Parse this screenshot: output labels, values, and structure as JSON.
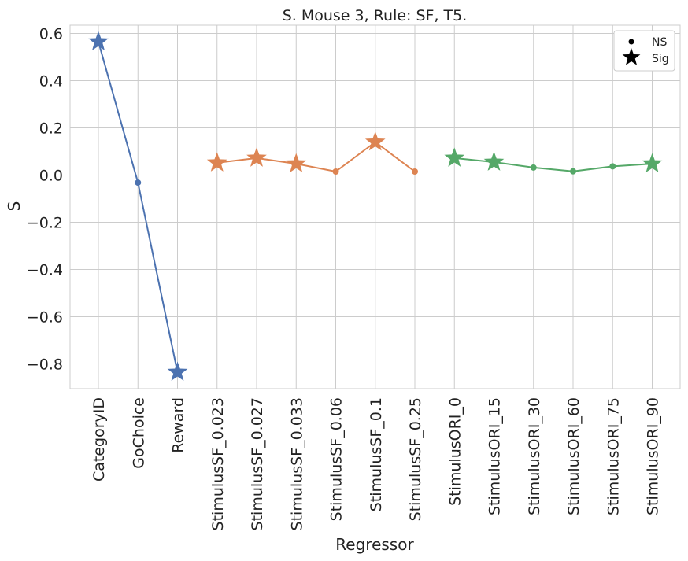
{
  "chart_data": {
    "type": "line",
    "title": "S. Mouse 3, Rule: SF, T5.",
    "xlabel": "Regressor",
    "ylabel": "S",
    "categories": [
      "CategoryID",
      "GoChoice",
      "Reward",
      "StimulusSF_0.023",
      "StimulusSF_0.027",
      "StimulusSF_0.033",
      "StimulusSF_0.06",
      "StimulusSF_0.1",
      "StimulusSF_0.25",
      "StimulusORI_0",
      "StimulusORI_15",
      "StimulusORI_30",
      "StimulusORI_60",
      "StimulusORI_75",
      "StimulusORI_90"
    ],
    "ylim": [
      -0.905,
      0.635
    ],
    "yticks": [
      0.6,
      0.4,
      0.2,
      0.0,
      -0.2,
      -0.4,
      -0.6,
      -0.8
    ],
    "ytick_labels": [
      "0.6",
      "0.4",
      "0.2",
      "0.0",
      "−0.2",
      "−0.4",
      "−0.6",
      "−0.8"
    ],
    "grid": true,
    "series": [
      {
        "color": "#4c72b0",
        "points": [
          {
            "category": "CategoryID",
            "value": 0.565,
            "sig": true
          },
          {
            "category": "GoChoice",
            "value": -0.032,
            "sig": false
          },
          {
            "category": "Reward",
            "value": -0.835,
            "sig": true
          }
        ]
      },
      {
        "color": "#dd8452",
        "points": [
          {
            "category": "StimulusSF_0.023",
            "value": 0.052,
            "sig": true
          },
          {
            "category": "StimulusSF_0.027",
            "value": 0.072,
            "sig": true
          },
          {
            "category": "StimulusSF_0.033",
            "value": 0.048,
            "sig": true
          },
          {
            "category": "StimulusSF_0.06",
            "value": 0.015,
            "sig": false
          },
          {
            "category": "StimulusSF_0.1",
            "value": 0.14,
            "sig": true
          },
          {
            "category": "StimulusSF_0.25",
            "value": 0.015,
            "sig": false
          }
        ]
      },
      {
        "color": "#55a868",
        "points": [
          {
            "category": "StimulusORI_0",
            "value": 0.072,
            "sig": true
          },
          {
            "category": "StimulusORI_15",
            "value": 0.055,
            "sig": true
          },
          {
            "category": "StimulusORI_30",
            "value": 0.032,
            "sig": false
          },
          {
            "category": "StimulusORI_60",
            "value": 0.016,
            "sig": false
          },
          {
            "category": "StimulusORI_75",
            "value": 0.037,
            "sig": false
          },
          {
            "category": "StimulusORI_90",
            "value": 0.048,
            "sig": true
          }
        ]
      }
    ],
    "legend": {
      "position": "top-right",
      "items": [
        {
          "label": "NS",
          "marker": "dot"
        },
        {
          "label": "Sig",
          "marker": "star"
        }
      ]
    }
  }
}
